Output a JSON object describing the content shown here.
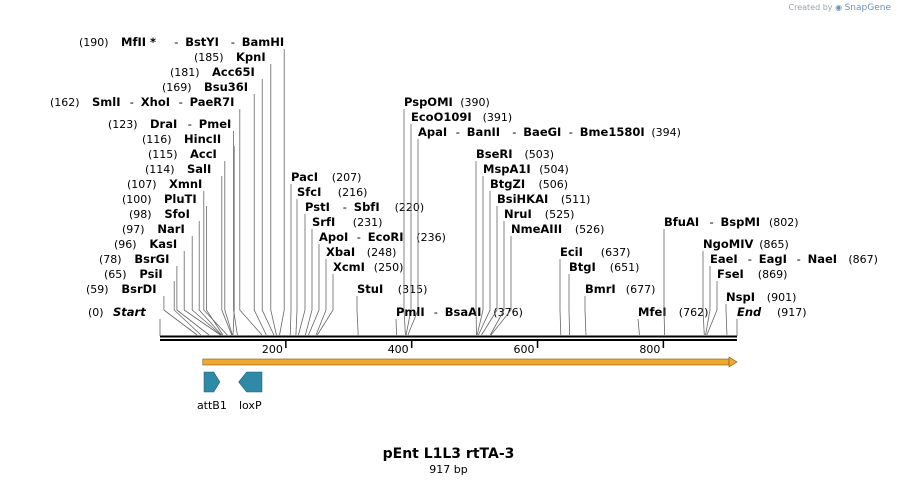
{
  "credit": {
    "prefix": "Created by",
    "brand": "SnapGene"
  },
  "map": {
    "title": "pEnt L1L3 rtTA-3",
    "length_label": "917 bp",
    "length": 917,
    "ticks": [
      "200",
      "400",
      "600",
      "800"
    ],
    "tick_values": [
      200,
      400,
      600,
      800
    ],
    "start_label": "Start",
    "start_pos": "(0)",
    "end_label": "End",
    "end_pos": "(917)",
    "features": [
      {
        "name": "attB1",
        "start": 70,
        "end": 95,
        "direction": "forward",
        "color": "#2f8aa8"
      },
      {
        "name": "loxP",
        "start": 125,
        "end": 162,
        "direction": "reverse",
        "color": "#2f8aa8"
      },
      {
        "name": "",
        "start": 68,
        "end": 917,
        "direction": "forward",
        "color": "#f0a830"
      }
    ],
    "enzymes": [
      {
        "names": [
          "MfII *",
          "BstYI",
          "BamHI"
        ],
        "pos": "(190)",
        "site": 190,
        "pos_first": true
      },
      {
        "names": [
          "KpnI"
        ],
        "pos": "(185)",
        "site": 185,
        "pos_first": true
      },
      {
        "names": [
          "Acc65I"
        ],
        "pos": "(181)",
        "site": 181,
        "pos_first": true
      },
      {
        "names": [
          "Bsu36I"
        ],
        "pos": "(169)",
        "site": 169,
        "pos_first": true
      },
      {
        "names": [
          "SmlI",
          "XhoI",
          "PaeR7I"
        ],
        "pos": "(162)",
        "site": 162,
        "pos_first": true
      },
      {
        "names": [
          "DraI",
          "PmeI"
        ],
        "pos": "(123)",
        "site": 123,
        "pos_first": true
      },
      {
        "names": [
          "HincII"
        ],
        "pos": "(116)",
        "site": 116,
        "pos_first": true
      },
      {
        "names": [
          "AccI"
        ],
        "pos": "(115)",
        "site": 115,
        "pos_first": true
      },
      {
        "names": [
          "SalI"
        ],
        "pos": "(114)",
        "site": 114,
        "pos_first": true
      },
      {
        "names": [
          "XmnI"
        ],
        "pos": "(107)",
        "site": 107,
        "pos_first": true
      },
      {
        "names": [
          "PluTI"
        ],
        "pos": "(100)",
        "site": 100,
        "pos_first": true
      },
      {
        "names": [
          "SfoI"
        ],
        "pos": "(98)",
        "site": 98,
        "pos_first": true
      },
      {
        "names": [
          "NarI"
        ],
        "pos": "(97)",
        "site": 97,
        "pos_first": true
      },
      {
        "names": [
          "KasI"
        ],
        "pos": "(96)",
        "site": 96,
        "pos_first": true
      },
      {
        "names": [
          "BsrGI"
        ],
        "pos": "(78)",
        "site": 78,
        "pos_first": true
      },
      {
        "names": [
          "PsiI"
        ],
        "pos": "(65)",
        "site": 65,
        "pos_first": true
      },
      {
        "names": [
          "BsrDI"
        ],
        "pos": "(59)",
        "site": 59,
        "pos_first": true
      },
      {
        "names": [
          "PacI"
        ],
        "pos": "(207)",
        "site": 207,
        "pos_first": false
      },
      {
        "names": [
          "SfcI"
        ],
        "pos": "(216)",
        "site": 216,
        "pos_first": false
      },
      {
        "names": [
          "PstI",
          "SbfI"
        ],
        "pos": "(220)",
        "site": 220,
        "pos_first": false
      },
      {
        "names": [
          "SrfI"
        ],
        "pos": "(231)",
        "site": 231,
        "pos_first": false
      },
      {
        "names": [
          "ApoI",
          "EcoRI"
        ],
        "pos": "(236)",
        "site": 236,
        "pos_first": false
      },
      {
        "names": [
          "XbaI"
        ],
        "pos": "(248)",
        "site": 248,
        "pos_first": false
      },
      {
        "names": [
          "XcmI"
        ],
        "pos": "(250)",
        "site": 250,
        "pos_first": false
      },
      {
        "names": [
          "StuI"
        ],
        "pos": "(315)",
        "site": 315,
        "pos_first": false
      },
      {
        "names": [
          "PspOMI"
        ],
        "pos": "(390)",
        "site": 390,
        "pos_first": false
      },
      {
        "names": [
          "EcoO109I"
        ],
        "pos": "(391)",
        "site": 391,
        "pos_first": false
      },
      {
        "names": [
          "ApaI",
          "BanII",
          "BaeGI",
          "Bme1580I"
        ],
        "pos": "(394)",
        "site": 394,
        "pos_first": false
      },
      {
        "names": [
          "PmlI",
          "BsaAI"
        ],
        "pos": "(376)",
        "site": 376,
        "pos_first": false
      },
      {
        "names": [
          "BseRI"
        ],
        "pos": "(503)",
        "site": 503,
        "pos_first": false
      },
      {
        "names": [
          "MspA1I"
        ],
        "pos": "(504)",
        "site": 504,
        "pos_first": false
      },
      {
        "names": [
          "BtgZI"
        ],
        "pos": "(506)",
        "site": 506,
        "pos_first": false
      },
      {
        "names": [
          "BsiHKAI"
        ],
        "pos": "(511)",
        "site": 511,
        "pos_first": false
      },
      {
        "names": [
          "NruI"
        ],
        "pos": "(525)",
        "site": 525,
        "pos_first": false
      },
      {
        "names": [
          "NmeAIII"
        ],
        "pos": "(526)",
        "site": 526,
        "pos_first": false
      },
      {
        "names": [
          "EciI"
        ],
        "pos": "(637)",
        "site": 637,
        "pos_first": false
      },
      {
        "names": [
          "BtgI"
        ],
        "pos": "(651)",
        "site": 651,
        "pos_first": false
      },
      {
        "names": [
          "BmrI"
        ],
        "pos": "(677)",
        "site": 677,
        "pos_first": false
      },
      {
        "names": [
          "MfeI"
        ],
        "pos": "(762)",
        "site": 762,
        "pos_first": false
      },
      {
        "names": [
          "BfuAI",
          "BspMI"
        ],
        "pos": "(802)",
        "site": 802,
        "pos_first": false
      },
      {
        "names": [
          "NgoMIV"
        ],
        "pos": "(865)",
        "site": 865,
        "pos_first": false
      },
      {
        "names": [
          "EaeI",
          "EagI",
          "NaeI"
        ],
        "pos": "(867)",
        "site": 867,
        "pos_first": false
      },
      {
        "names": [
          "FseI"
        ],
        "pos": "(869)",
        "site": 869,
        "pos_first": false
      },
      {
        "names": [
          "NspI"
        ],
        "pos": "(901)",
        "site": 901,
        "pos_first": false
      }
    ]
  }
}
